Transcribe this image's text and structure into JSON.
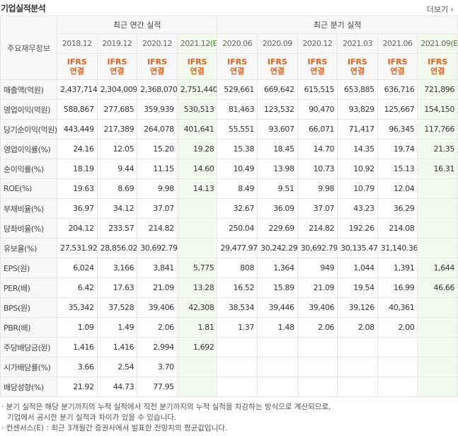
{
  "header": {
    "title": "기업실적분석",
    "more": "더보기"
  },
  "table": {
    "corner": "주요재무정보",
    "groups": [
      {
        "label": "최근 연간 실적",
        "periods": [
          {
            "date": "2018.12",
            "standard": "IFRS",
            "scope": "연결"
          },
          {
            "date": "2019.12",
            "standard": "IFRS",
            "scope": "연결"
          },
          {
            "date": "2020.12",
            "standard": "IFRS",
            "scope": "연결"
          },
          {
            "date": "2021.12",
            "estimate": "(E)",
            "standard": "IFRS",
            "scope": "연결"
          }
        ]
      },
      {
        "label": "최근 분기 실적",
        "periods": [
          {
            "date": "2020.06",
            "standard": "IFRS",
            "scope": "연결"
          },
          {
            "date": "2020.09",
            "standard": "IFRS",
            "scope": "연결"
          },
          {
            "date": "2020.12",
            "standard": "IFRS",
            "scope": "연결"
          },
          {
            "date": "2021.03",
            "standard": "IFRS",
            "scope": "연결"
          },
          {
            "date": "2021.06",
            "standard": "IFRS",
            "scope": "연결"
          },
          {
            "date": "2021.09",
            "estimate": "(E)",
            "standard": "IFRS",
            "scope": "연결"
          }
        ]
      }
    ],
    "sections": [
      {
        "rows": [
          {
            "label": "매출액(억원)",
            "values": [
              "2,437,714",
              "2,304,009",
              "2,368,070",
              "2,751,440",
              "529,661",
              "669,642",
              "615,515",
              "653,885",
              "636,716",
              "721,896"
            ]
          },
          {
            "label": "영업이익(억원)",
            "values": [
              "588,867",
              "277,685",
              "359,939",
              "530,513",
              "81,463",
              "123,532",
              "90,470",
              "93,829",
              "125,667",
              "154,150"
            ]
          },
          {
            "label": "당기순이익(억원)",
            "values": [
              "443,449",
              "217,389",
              "264,078",
              "401,641",
              "55,551",
              "93,607",
              "66,071",
              "71,417",
              "96,345",
              "117,766"
            ]
          }
        ]
      },
      {
        "rows": [
          {
            "label": "영업이익률(%)",
            "values": [
              "24.16",
              "12.05",
              "15.20",
              "19.28",
              "15.38",
              "18.45",
              "14.70",
              "14.35",
              "19.74",
              "21.35"
            ]
          },
          {
            "label": "순이익률(%)",
            "values": [
              "18.19",
              "9.44",
              "11.15",
              "14.60",
              "10.49",
              "13.98",
              "10.73",
              "10.92",
              "15.13",
              "16.31"
            ]
          },
          {
            "label": "ROE(%)",
            "values": [
              "19.63",
              "8.69",
              "9.98",
              "14.13",
              "8.49",
              "9.51",
              "9.98",
              "10.79",
              "12.04",
              null
            ]
          }
        ]
      },
      {
        "rows": [
          {
            "label": "부채비율(%)",
            "values": [
              "36.97",
              "34.12",
              "37.07",
              null,
              "32.67",
              "36.09",
              "37.07",
              "43.23",
              "36.29",
              null
            ]
          },
          {
            "label": "당좌비율(%)",
            "values": [
              "204.12",
              "233.57",
              "214.82",
              null,
              "250.04",
              "229.69",
              "214.82",
              "192.26",
              "214.08",
              null
            ]
          },
          {
            "label": "유보율(%)",
            "values": [
              "27,531.92",
              "28,856.02",
              "30,692.79",
              null,
              "29,477.97",
              "30,242.29",
              "30,692.79",
              "30,135.47",
              "31,140.36",
              null
            ]
          }
        ]
      },
      {
        "rows": [
          {
            "label": "EPS(원)",
            "values": [
              "6,024",
              "3,166",
              "3,841",
              "5,775",
              "808",
              "1,364",
              "949",
              "1,044",
              "1,391",
              "1,644"
            ]
          },
          {
            "label": "PER(배)",
            "values": [
              "6.42",
              "17.63",
              "21.09",
              "13.28",
              "16.52",
              "15.89",
              "21.09",
              "19.54",
              "16.99",
              "46.66"
            ]
          },
          {
            "label": "BPS(원)",
            "values": [
              "35,342",
              "37,528",
              "39,406",
              "42,308",
              "38,534",
              "39,446",
              "39,406",
              "39,126",
              "40,361",
              null
            ]
          },
          {
            "label": "PBR(배)",
            "values": [
              "1.09",
              "1.49",
              "2.06",
              "1.81",
              "1.37",
              "1.48",
              "2.06",
              "2.08",
              "2.00",
              null
            ]
          }
        ]
      },
      {
        "rows": [
          {
            "label": "주당배당금(원)",
            "values": [
              "1,416",
              "1,416",
              "2,994",
              "1,692",
              null,
              null,
              null,
              null,
              null,
              null
            ]
          },
          {
            "label": "시가배당률(%)",
            "values": [
              "3.66",
              "2.54",
              "3.70",
              null,
              null,
              null,
              null,
              null,
              null,
              null
            ]
          },
          {
            "label": "배당성향(%)",
            "values": [
              "21.92",
              "44.73",
              "77.95",
              null,
              null,
              null,
              null,
              null,
              null,
              null
            ]
          }
        ]
      }
    ]
  },
  "notes": [
    "· 분기 실적은 해당 분기까지의 누적 실적에서 직전 분기까지의 누적 실적을 차감하는 방식으로 계산되므로,",
    "기업에서 공시한 분기 실적과 차이가 있을 수 있습니다.",
    "· 컨센서스(E) : 최근 3개월간 증권사에서 발표한 전망치의 평균값입니다."
  ]
}
